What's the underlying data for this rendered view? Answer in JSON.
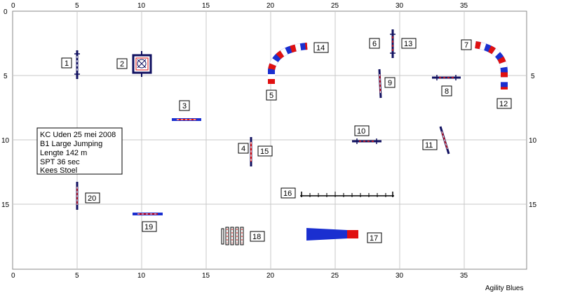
{
  "x_ticks": [
    "0",
    "5",
    "10",
    "15",
    "20",
    "25",
    "30",
    "35"
  ],
  "y_ticks": [
    "0",
    "5",
    "10",
    "15"
  ],
  "info": {
    "line1": "KC Uden 25 mei 2008",
    "line2": "B1 Large Jumping",
    "line3": "Lengte 142 m",
    "line4": "SPT 36 sec",
    "line5": "Kees Stoel"
  },
  "credit": "Agility Blues",
  "obstacle_numbers": [
    "1",
    "2",
    "3",
    "4",
    "5",
    "6",
    "7",
    "8",
    "9",
    "10",
    "11",
    "12",
    "13",
    "14",
    "15",
    "16",
    "17",
    "18",
    "19",
    "20"
  ],
  "colors": {
    "grid": "#c8c8c8",
    "pole_blue": "#1a2fd0",
    "pole_red": "#e01010",
    "pole_dark": "#101060",
    "tunnel_blue": "#1a2fd0",
    "tunnel_red": "#e01010"
  }
}
